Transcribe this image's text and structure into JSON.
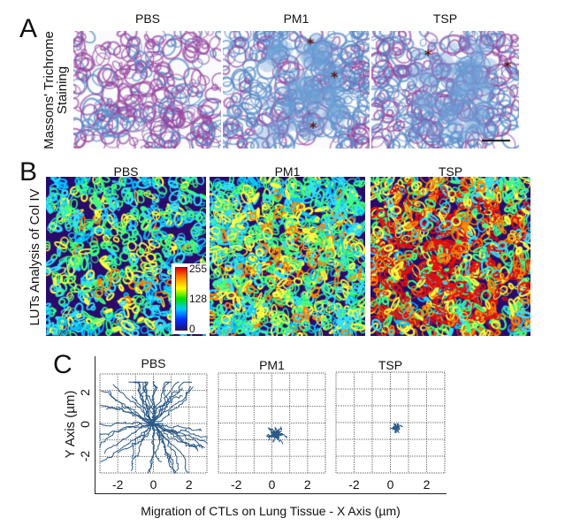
{
  "panels": {
    "a": {
      "letter": "A",
      "row_label_line1": "Massons' Trichrome",
      "row_label_line2": "Staining",
      "titles": [
        "PBS",
        "PM1",
        "TSP"
      ]
    },
    "b": {
      "letter": "B",
      "row_label": "LUTs Analysis of Col IV",
      "titles": [
        "PBS",
        "PM1",
        "TSP"
      ],
      "colorbar": {
        "max": "255",
        "mid": "128",
        "min": "0"
      }
    },
    "c": {
      "letter": "C",
      "titles": [
        "PBS",
        "PM1",
        "TSP"
      ]
    }
  },
  "chart_data": {
    "type": "line",
    "title": "",
    "xlabel": "Migration of CTLs on Lung Tissue - X Axis (µm)",
    "ylabel": "Y Axis (µm)",
    "xlim": [
      -3,
      3
    ],
    "ylim": [
      -3,
      3
    ],
    "xticks": [
      "-2",
      "0",
      "2"
    ],
    "yticks": [
      "2",
      "0",
      "-2"
    ],
    "grid": true,
    "series_color": "#2b5a86",
    "subplots": [
      {
        "name": "PBS",
        "track_spread_x": [
          -3,
          3
        ],
        "track_spread_y": [
          -3,
          2.5
        ]
      },
      {
        "name": "PM1",
        "track_spread_x": [
          -1.2,
          1.6
        ],
        "track_spread_y": [
          -2,
          0.4
        ]
      },
      {
        "name": "TSP",
        "track_spread_x": [
          -0.6,
          1.3
        ],
        "track_spread_y": [
          -1.1,
          0.3
        ]
      }
    ]
  }
}
